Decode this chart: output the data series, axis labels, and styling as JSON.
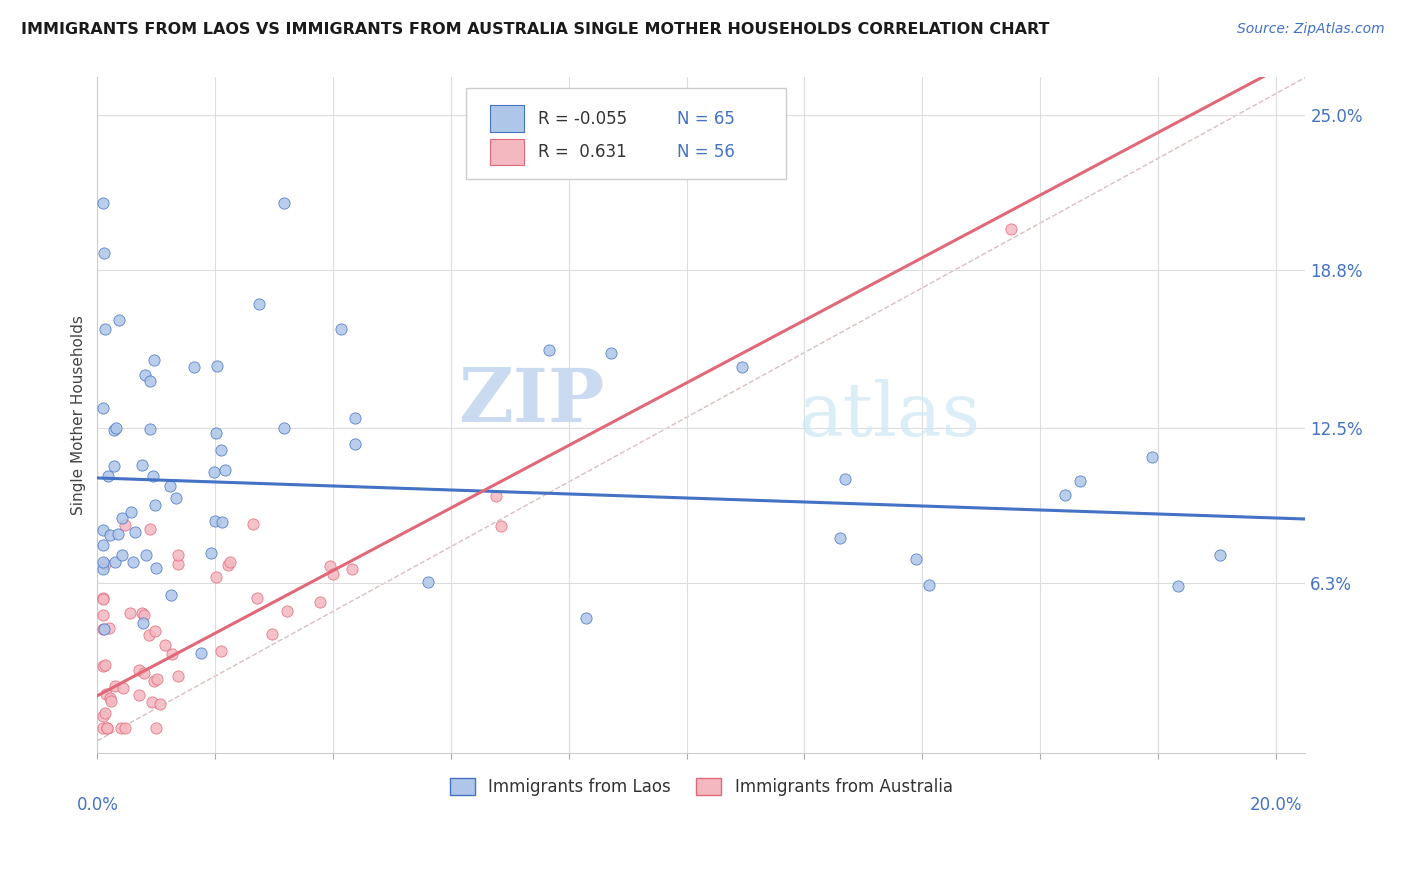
{
  "title": "IMMIGRANTS FROM LAOS VS IMMIGRANTS FROM AUSTRALIA SINGLE MOTHER HOUSEHOLDS CORRELATION CHART",
  "source": "Source: ZipAtlas.com",
  "ylabel": "Single Mother Households",
  "yticks": [
    "6.3%",
    "12.5%",
    "18.8%",
    "25.0%"
  ],
  "ytick_vals": [
    0.063,
    0.125,
    0.188,
    0.25
  ],
  "xlim": [
    0.0,
    0.205
  ],
  "ylim": [
    -0.005,
    0.265
  ],
  "legend_label1": "Immigrants from Laos",
  "legend_label2": "Immigrants from Australia",
  "R1": -0.055,
  "N1": 65,
  "R2": 0.631,
  "N2": 56,
  "color_laos": "#aec6e8",
  "color_laos_line": "#4472c4",
  "color_australia": "#f4b8c1",
  "color_australia_line": "#e06878",
  "color_diagonal": "#ccaaaa",
  "watermark_zip": "ZIP",
  "watermark_atlas": "atlas",
  "seed": 99
}
